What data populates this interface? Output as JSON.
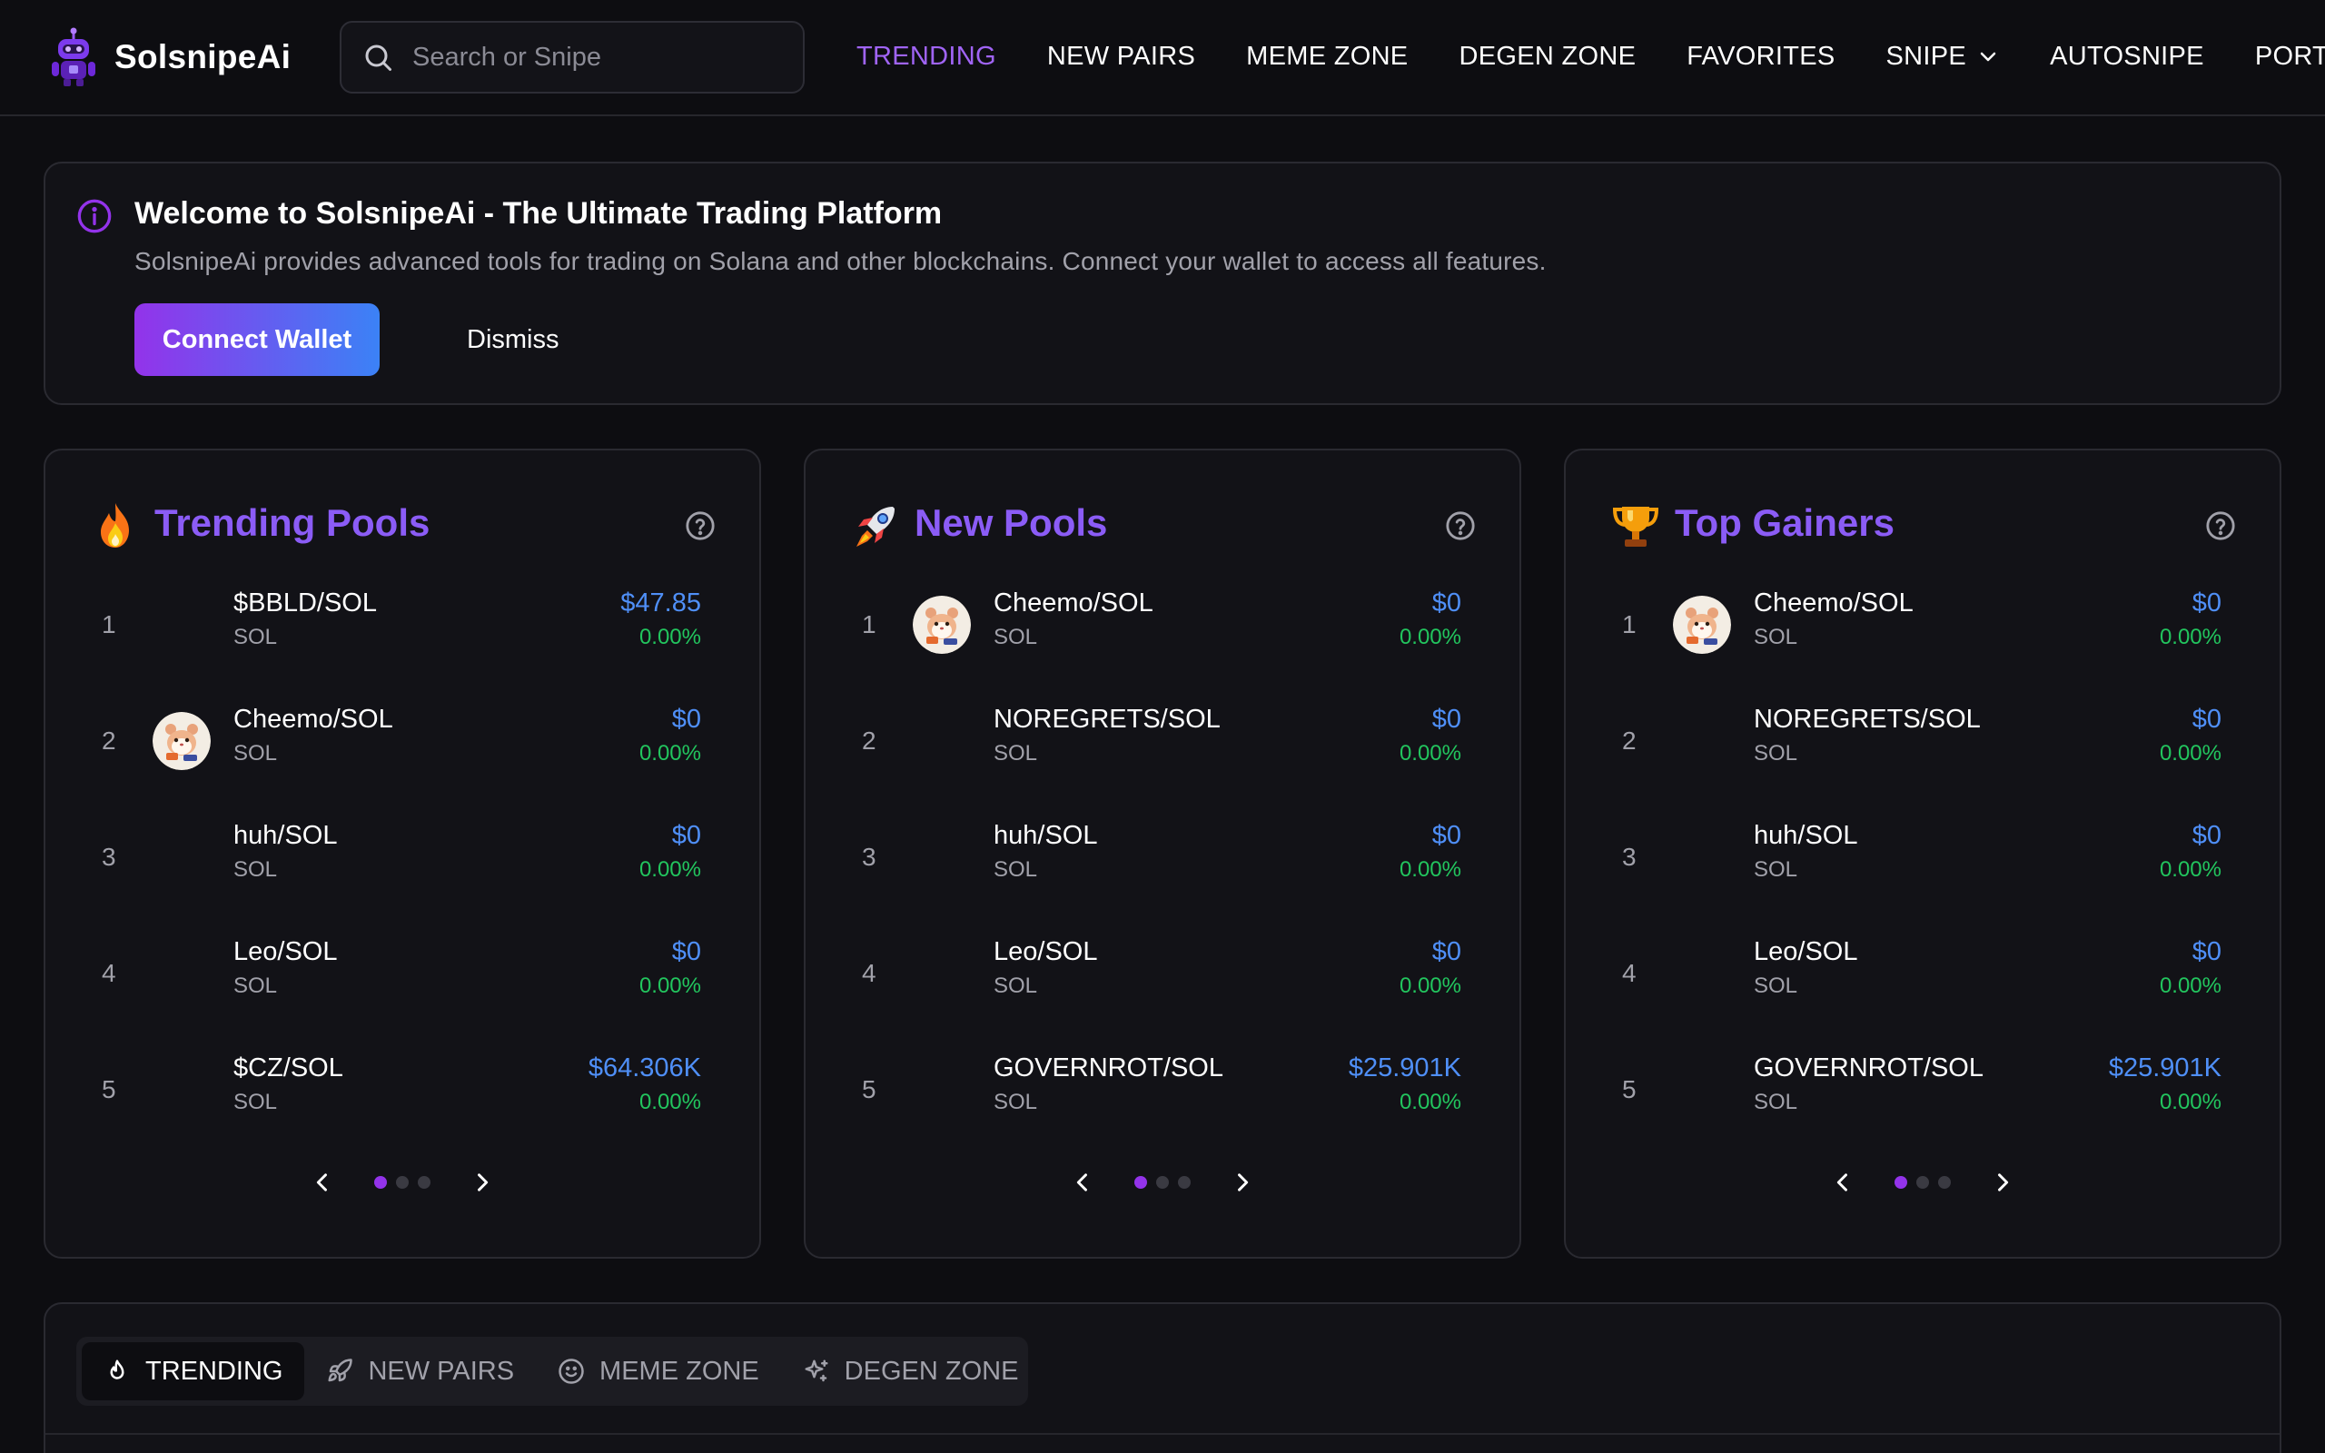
{
  "app": {
    "name": "SolsnipeAi"
  },
  "search": {
    "placeholder": "Search or Snipe"
  },
  "nav": {
    "items": [
      {
        "label": "TRENDING",
        "active": true
      },
      {
        "label": "NEW PAIRS"
      },
      {
        "label": "MEME ZONE"
      },
      {
        "label": "DEGEN ZONE"
      },
      {
        "label": "FAVORITES"
      },
      {
        "label": "SNIPE",
        "dropdown": true
      },
      {
        "label": "AUTOSNIPE"
      },
      {
        "label": "PORTFOLIO"
      }
    ]
  },
  "banner": {
    "title": "Welcome to SolsnipeAi - The Ultimate Trading Platform",
    "description": "SolsnipeAi provides advanced tools for trading on Solana and other blockchains. Connect your wallet to access all features.",
    "connect_label": "Connect Wallet",
    "dismiss_label": "Dismiss"
  },
  "cards": [
    {
      "title": "Trending Pools",
      "emoji_icon": "fire-icon",
      "rows": [
        {
          "rank": "1",
          "pair": "$BBLD/SOL",
          "chain": "SOL",
          "price": "$47.85",
          "change": "0.00%"
        },
        {
          "rank": "2",
          "pair": "Cheemo/SOL",
          "chain": "SOL",
          "price": "$0",
          "change": "0.00%"
        },
        {
          "rank": "3",
          "pair": "huh/SOL",
          "chain": "SOL",
          "price": "$0",
          "change": "0.00%"
        },
        {
          "rank": "4",
          "pair": "Leo/SOL",
          "chain": "SOL",
          "price": "$0",
          "change": "0.00%"
        },
        {
          "rank": "5",
          "pair": "$CZ/SOL",
          "chain": "SOL",
          "price": "$64.306K",
          "change": "0.00%"
        }
      ]
    },
    {
      "title": "New Pools",
      "emoji_icon": "rocket-icon",
      "rows": [
        {
          "rank": "1",
          "pair": "Cheemo/SOL",
          "chain": "SOL",
          "price": "$0",
          "change": "0.00%"
        },
        {
          "rank": "2",
          "pair": "NOREGRETS/SOL",
          "chain": "SOL",
          "price": "$0",
          "change": "0.00%"
        },
        {
          "rank": "3",
          "pair": "huh/SOL",
          "chain": "SOL",
          "price": "$0",
          "change": "0.00%"
        },
        {
          "rank": "4",
          "pair": "Leo/SOL",
          "chain": "SOL",
          "price": "$0",
          "change": "0.00%"
        },
        {
          "rank": "5",
          "pair": "GOVERNROT/SOL",
          "chain": "SOL",
          "price": "$25.901K",
          "change": "0.00%"
        }
      ]
    },
    {
      "title": "Top Gainers",
      "emoji_icon": "trophy-icon",
      "rows": [
        {
          "rank": "1",
          "pair": "Cheemo/SOL",
          "chain": "SOL",
          "price": "$0",
          "change": "0.00%"
        },
        {
          "rank": "2",
          "pair": "NOREGRETS/SOL",
          "chain": "SOL",
          "price": "$0",
          "change": "0.00%"
        },
        {
          "rank": "3",
          "pair": "huh/SOL",
          "chain": "SOL",
          "price": "$0",
          "change": "0.00%"
        },
        {
          "rank": "4",
          "pair": "Leo/SOL",
          "chain": "SOL",
          "price": "$0",
          "change": "0.00%"
        },
        {
          "rank": "5",
          "pair": "GOVERNROT/SOL",
          "chain": "SOL",
          "price": "$25.901K",
          "change": "0.00%"
        }
      ]
    }
  ],
  "bottom_tabs": [
    {
      "label": "TRENDING",
      "icon": "flame-icon",
      "active": true
    },
    {
      "label": "NEW PAIRS",
      "icon": "rocket-icon"
    },
    {
      "label": "MEME ZONE",
      "icon": "smile-icon"
    },
    {
      "label": "DEGEN ZONE",
      "icon": "sparkles-icon"
    }
  ],
  "colors": {
    "accent_purple": "#8b5cf6",
    "price_blue": "#4f8ff7",
    "change_green": "#22c55e",
    "background": "#0d0d11"
  }
}
